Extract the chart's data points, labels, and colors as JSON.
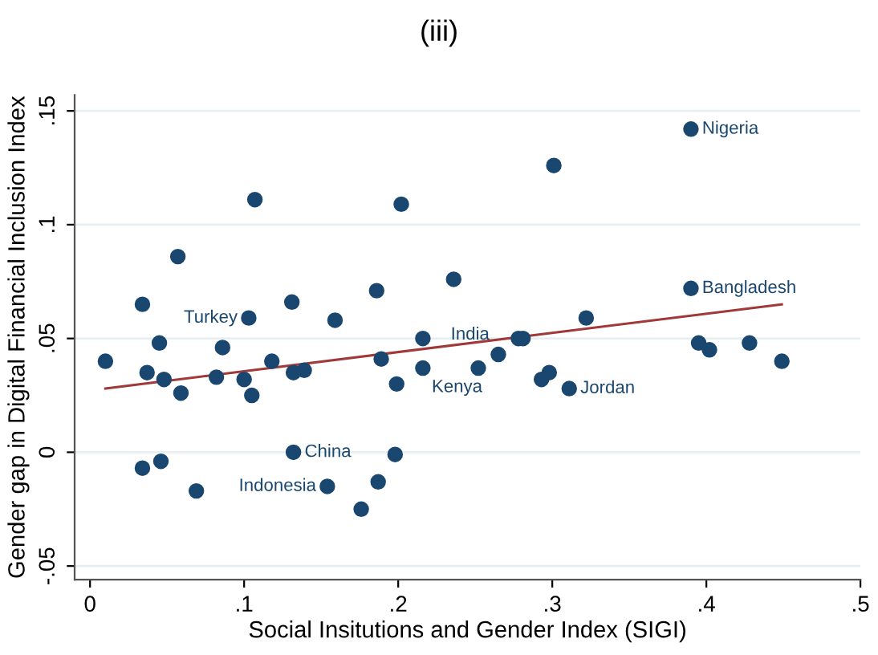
{
  "chart_data": {
    "type": "scatter",
    "title": "(iii)",
    "xlabel": "Social Insitutions and Gender Index (SIGI)",
    "ylabel": "Gender gap in Digital Financial Inclusion Index",
    "xlim": [
      -0.01,
      0.5
    ],
    "ylim": [
      -0.056,
      0.157
    ],
    "xticks": [
      {
        "value": 0,
        "label": "0"
      },
      {
        "value": 0.1,
        "label": ".1"
      },
      {
        "value": 0.2,
        "label": ".2"
      },
      {
        "value": 0.3,
        "label": ".3"
      },
      {
        "value": 0.4,
        "label": ".4"
      },
      {
        "value": 0.5,
        "label": ".5"
      }
    ],
    "yticks": [
      {
        "value": -0.05,
        "label": "-.05"
      },
      {
        "value": 0,
        "label": "0"
      },
      {
        "value": 0.05,
        "label": ".05"
      },
      {
        "value": 0.1,
        "label": ".1"
      },
      {
        "value": 0.15,
        "label": ".15"
      }
    ],
    "grid": "y",
    "legend": false,
    "series": [
      {
        "marker": "circle",
        "color": "#1a476f",
        "x": [
          0.01,
          0.034,
          0.037,
          0.045,
          0.048,
          0.057,
          0.059,
          0.034,
          0.046,
          0.069,
          0.082,
          0.086,
          0.1,
          0.105,
          0.107,
          0.103,
          0.118,
          0.131,
          0.132,
          0.139,
          0.132,
          0.159,
          0.154,
          0.186,
          0.189,
          0.187,
          0.199,
          0.198,
          0.176,
          0.202,
          0.236,
          0.216,
          0.216,
          0.252,
          0.265,
          0.278,
          0.281,
          0.293,
          0.298,
          0.311,
          0.322,
          0.301,
          0.39,
          0.39,
          0.395,
          0.402,
          0.428,
          0.449
        ],
        "values": [
          0.04,
          0.065,
          0.035,
          0.048,
          0.032,
          0.086,
          0.026,
          -0.007,
          -0.004,
          -0.017,
          0.033,
          0.046,
          0.032,
          0.025,
          0.111,
          0.059,
          0.04,
          0.066,
          0.035,
          0.036,
          0.0,
          0.058,
          -0.015,
          0.071,
          0.041,
          -0.013,
          0.03,
          -0.001,
          -0.025,
          0.109,
          0.076,
          0.05,
          0.037,
          0.037,
          0.043,
          0.05,
          0.05,
          0.032,
          0.035,
          0.028,
          0.059,
          0.126,
          0.142,
          0.072,
          0.048,
          0.045,
          0.048,
          0.04
        ]
      },
      {
        "type": "line",
        "color": "#a03a3a",
        "x": [
          0.01,
          0.449
        ],
        "values": [
          0.028,
          0.065
        ]
      }
    ],
    "annotations": [
      {
        "text": "Turkey",
        "x": 0.103,
        "y": 0.059
      },
      {
        "text": "China",
        "x": 0.132,
        "y": 0.0
      },
      {
        "text": "Indonesia",
        "x": 0.154,
        "y": -0.015
      },
      {
        "text": "Kenya",
        "x": 0.216,
        "y": 0.037
      },
      {
        "text": "India",
        "x": 0.265,
        "y": 0.043
      },
      {
        "text": "Jordan",
        "x": 0.311,
        "y": 0.028
      },
      {
        "text": "Nigeria",
        "x": 0.39,
        "y": 0.142
      },
      {
        "text": "Bangladesh",
        "x": 0.39,
        "y": 0.072
      }
    ]
  }
}
